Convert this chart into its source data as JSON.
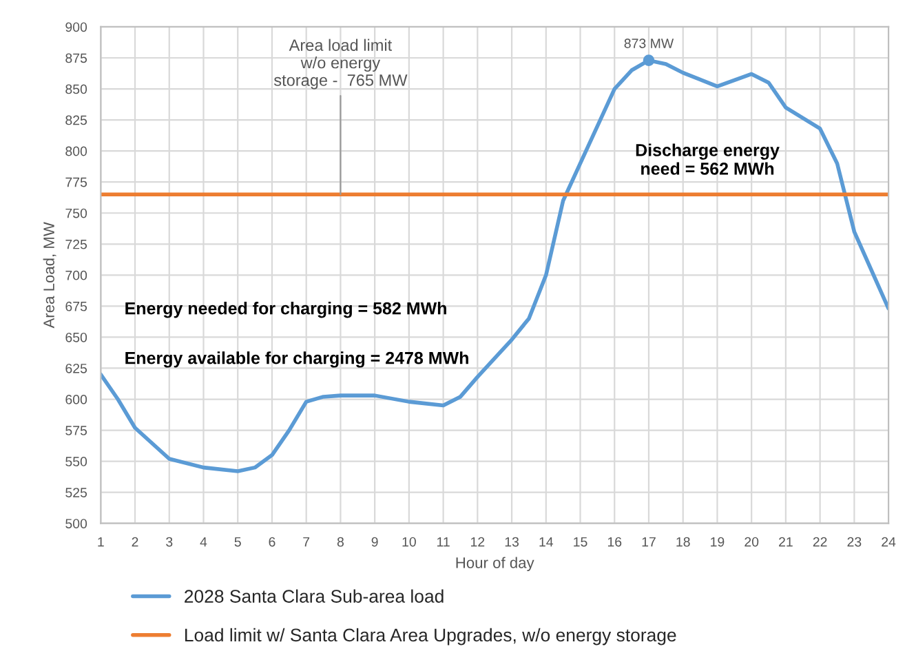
{
  "chart_data": {
    "type": "line",
    "xlabel": "Hour of day",
    "ylabel": "Area Load, MW",
    "xlim": [
      1,
      24
    ],
    "xticks": [
      1,
      2,
      3,
      4,
      5,
      6,
      7,
      8,
      9,
      10,
      11,
      12,
      13,
      14,
      15,
      16,
      17,
      18,
      19,
      20,
      21,
      22,
      23,
      24
    ],
    "ylim": [
      500,
      900
    ],
    "yticks": [
      500,
      525,
      550,
      575,
      600,
      625,
      650,
      675,
      700,
      725,
      750,
      775,
      800,
      825,
      850,
      875,
      900
    ],
    "grid": true,
    "legend": "bottom",
    "marker": "none",
    "line_style": "solid",
    "series": [
      {
        "name": "2028 Santa Clara Sub-area load",
        "color": "#5b9bd5",
        "x": [
          1,
          1.5,
          2,
          3,
          4,
          5,
          5.5,
          6,
          6.5,
          7,
          7.5,
          8,
          9,
          10,
          11,
          11.5,
          12,
          13,
          13.5,
          14,
          14.5,
          15,
          16,
          16.5,
          17,
          17.5,
          18,
          19,
          19.5,
          20,
          20.5,
          21,
          22,
          22.5,
          23,
          24
        ],
        "values": [
          620,
          600,
          577,
          552,
          545,
          542,
          545,
          555,
          575,
          598,
          602,
          603,
          603,
          598,
          595,
          602,
          618,
          648,
          665,
          700,
          760,
          790,
          850,
          865,
          873,
          870,
          863,
          852,
          857,
          862,
          855,
          835,
          818,
          790,
          735,
          673
        ]
      },
      {
        "name": "Load limit w/ Santa Clara Area Upgrades, w/o energy storage",
        "color": "#ed7d31",
        "x": [
          1,
          24
        ],
        "values": [
          765,
          765
        ]
      },
      {
        "type": "scatter",
        "marker": "circle",
        "color": "#5b9bd5",
        "x": [
          17
        ],
        "values": [
          873
        ]
      }
    ],
    "annotations": [
      {
        "text": "873 MW",
        "x": 17,
        "y": 873
      },
      {
        "text": "Area load limit\nw/o energy\nstorage -  765 MW",
        "x": 8,
        "y": 765
      },
      "Discharge energy\nneed = 562 MWh",
      "Energy needed for charging = 582 MWh",
      "Energy available for charging = 2478 MWh"
    ]
  }
}
